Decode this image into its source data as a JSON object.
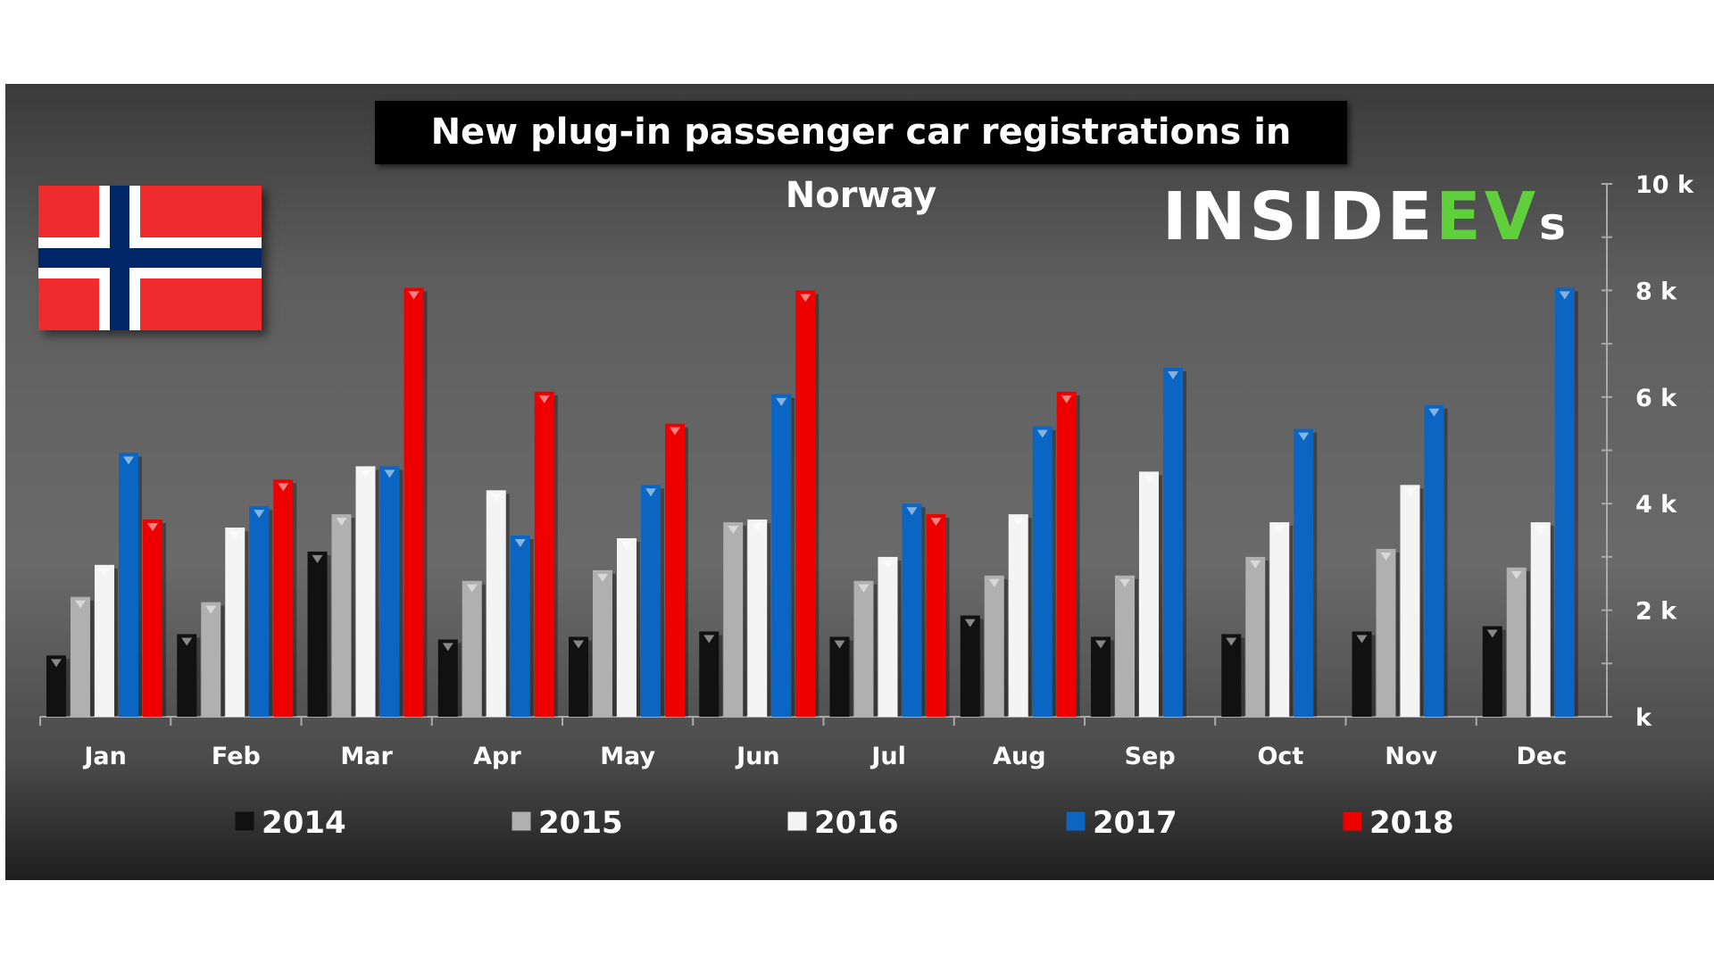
{
  "chart_data": {
    "type": "bar",
    "title": "New plug-in passenger car registrations in Norway",
    "categories": [
      "Jan",
      "Feb",
      "Mar",
      "Apr",
      "May",
      "Jun",
      "Jul",
      "Aug",
      "Sep",
      "Oct",
      "Nov",
      "Dec"
    ],
    "series": [
      {
        "name": "2014",
        "color": "#111111",
        "values": [
          1.15,
          1.55,
          3.1,
          1.45,
          1.5,
          1.6,
          1.5,
          1.9,
          1.5,
          1.55,
          1.6,
          1.7
        ]
      },
      {
        "name": "2015",
        "color": "#b0b0b0",
        "values": [
          2.25,
          2.15,
          3.8,
          2.55,
          2.75,
          3.65,
          2.55,
          2.65,
          2.65,
          3.0,
          3.15,
          2.8
        ]
      },
      {
        "name": "2016",
        "color": "#f4f4f4",
        "values": [
          2.85,
          3.55,
          4.7,
          4.25,
          3.35,
          3.7,
          3.0,
          3.8,
          4.6,
          3.65,
          4.35,
          3.65
        ]
      },
      {
        "name": "2017",
        "color": "#0a66c2",
        "values": [
          4.95,
          3.95,
          4.7,
          3.4,
          4.35,
          6.05,
          4.0,
          5.45,
          6.55,
          5.4,
          5.85,
          8.05
        ]
      },
      {
        "name": "2018",
        "color": "#ee0000",
        "values": [
          3.7,
          4.45,
          8.05,
          6.1,
          5.5,
          8.0,
          3.8,
          6.1,
          null,
          null,
          null,
          null
        ]
      }
    ],
    "ylim": [
      0,
      10
    ],
    "yticks": [
      "k",
      "2 k",
      "4 k",
      "6 k",
      "8 k",
      "10 k"
    ],
    "legend": "bottom",
    "grid": false
  },
  "logo": {
    "text_a": "INSIDE",
    "text_b": "EV",
    "text_c": "s"
  }
}
